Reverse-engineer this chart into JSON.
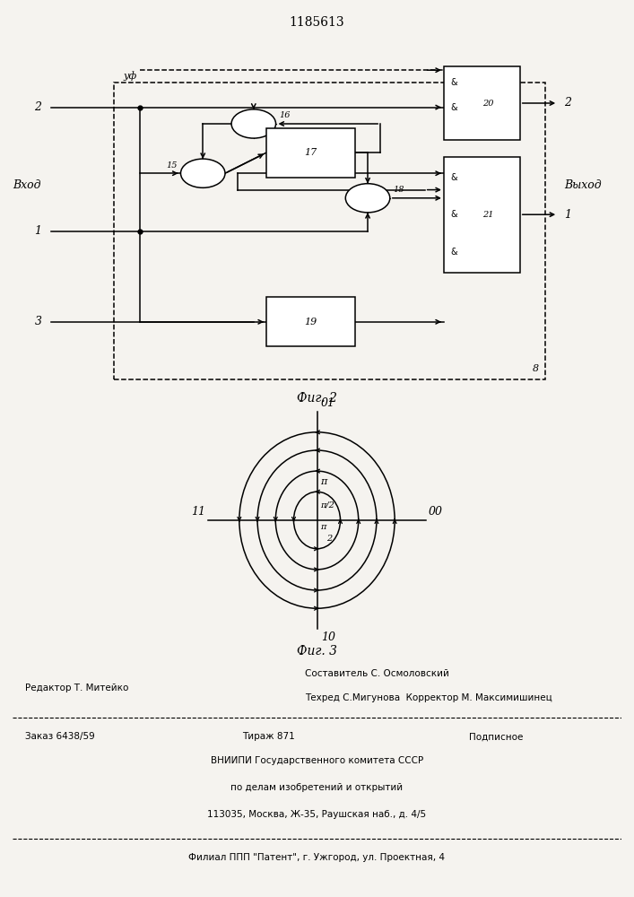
{
  "title_number": "1185613",
  "bg_color": "#f5f3ef",
  "fig2_caption": "Фиг. 2",
  "fig3_caption": "Фиг. 3",
  "footer": {
    "editor": "Редактор Т. Митейко",
    "composer": "Составитель С. Осмоловский",
    "techred": "Техред С.Мигунова  Корректор М. Максимишинец",
    "order": "Заказ 6438/59",
    "tirazh": "Тираж 871",
    "podpisnoe": "Подписное",
    "vniip1": "ВНИИПИ Государственного комитета СССР",
    "vniip2": "по делам изобретений и открытий",
    "vniip3": "113035, Москва, Ж-35, Раушская наб., д. 4/5",
    "filial": "Филиал ППП \"Патент\", г. Ужгород, ул. Проектная, 4"
  }
}
